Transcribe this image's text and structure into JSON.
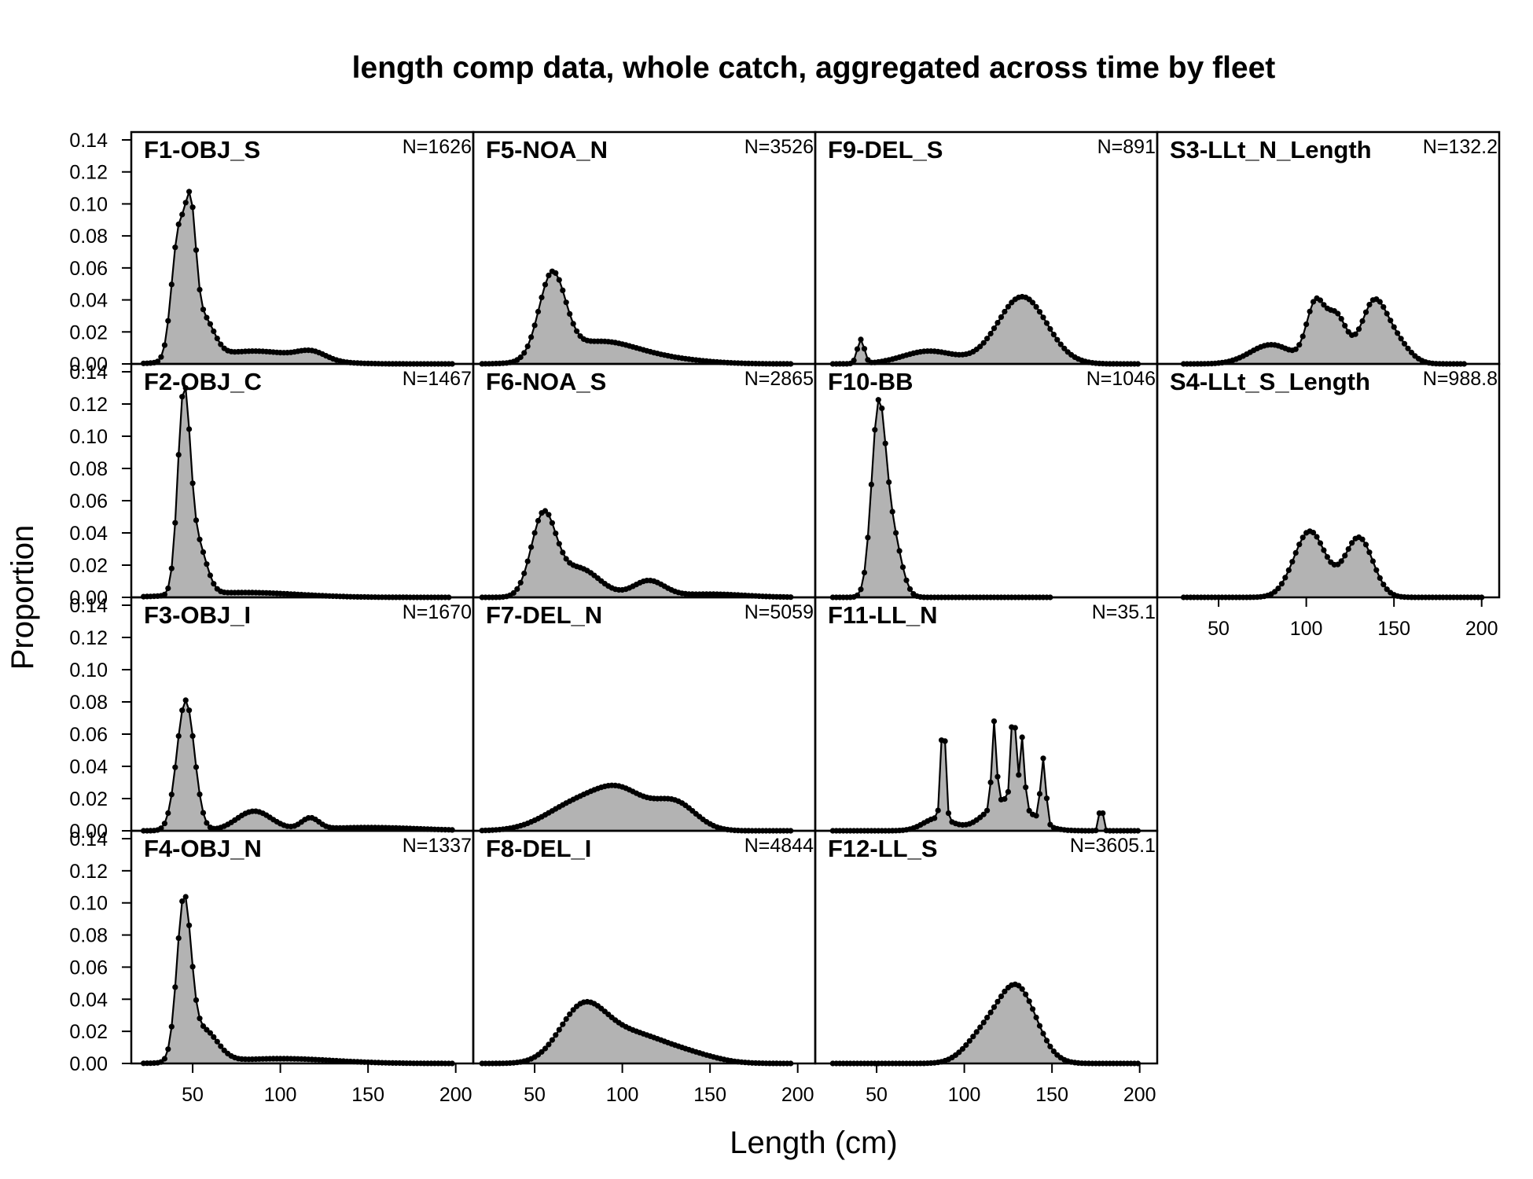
{
  "title": "length comp data, whole catch, aggregated across time by fleet",
  "xlabel": "Length (cm)",
  "ylabel": "Proportion",
  "colors": {
    "fill": "#b3b3b3",
    "line": "#000000",
    "frame": "#000000"
  },
  "y_ticks": [
    "0.00",
    "0.02",
    "0.04",
    "0.06",
    "0.08",
    "0.10",
    "0.12",
    "0.14"
  ],
  "x_ticks": [
    "50",
    "100",
    "150",
    "200"
  ],
  "chart_data": {
    "type": "area",
    "layout": "4 columns x 4 rows small multiples, shared axes",
    "xlim": [
      15,
      210
    ],
    "ylim": [
      0,
      0.14
    ],
    "x_ticks": [
      50,
      100,
      150,
      200
    ],
    "y_ticks": [
      0,
      0.02,
      0.04,
      0.06,
      0.08,
      0.1,
      0.12,
      0.14
    ],
    "grid": false,
    "panels": [
      {
        "label": "F1-OBJ_S",
        "n": "N=1626",
        "col": 0,
        "row": 0,
        "xrange": [
          22,
          198
        ],
        "peaks": [
          [
            42,
            0.079,
            4
          ],
          [
            49,
            0.073,
            3
          ],
          [
            56,
            0.025,
            6
          ],
          [
            85,
            0.008,
            25
          ],
          [
            118,
            0.005,
            8
          ]
        ]
      },
      {
        "label": "F2-OBJ_C",
        "n": "N=1467",
        "col": 0,
        "row": 1,
        "xrange": [
          22,
          196
        ],
        "peaks": [
          [
            45,
            0.122,
            3.5
          ],
          [
            53,
            0.03,
            5
          ],
          [
            80,
            0.003,
            30
          ]
        ]
      },
      {
        "label": "F3-OBJ_I",
        "n": "N=1670",
        "col": 0,
        "row": 2,
        "xrange": [
          22,
          198
        ],
        "peaks": [
          [
            46,
            0.081,
            5
          ],
          [
            85,
            0.012,
            10
          ],
          [
            117,
            0.007,
            5
          ],
          [
            150,
            0.002,
            30
          ]
        ]
      },
      {
        "label": "F4-OBJ_N",
        "n": "N=1337",
        "col": 0,
        "row": 3,
        "xrange": [
          22,
          198
        ],
        "peaks": [
          [
            45,
            0.097,
            4
          ],
          [
            56,
            0.02,
            8
          ],
          [
            100,
            0.003,
            30
          ]
        ]
      },
      {
        "label": "F5-NOA_N",
        "n": "N=3526",
        "col": 1,
        "row": 0,
        "xrange": [
          20,
          196
        ],
        "peaks": [
          [
            60,
            0.052,
            7.5
          ],
          [
            85,
            0.012,
            20
          ],
          [
            115,
            0.004,
            25
          ]
        ]
      },
      {
        "label": "F6-NOA_S",
        "n": "N=2865",
        "col": 1,
        "row": 1,
        "xrange": [
          20,
          196
        ],
        "peaks": [
          [
            55,
            0.049,
            7
          ],
          [
            75,
            0.018,
            12
          ],
          [
            115,
            0.01,
            9
          ],
          [
            150,
            0.002,
            20
          ]
        ]
      },
      {
        "label": "F7-DEL_N",
        "n": "N=5059",
        "col": 1,
        "row": 2,
        "xrange": [
          20,
          196
        ],
        "peaks": [
          [
            75,
            0.017,
            18
          ],
          [
            100,
            0.02,
            14
          ],
          [
            130,
            0.017,
            12
          ]
        ]
      },
      {
        "label": "F8-DEL_I",
        "n": "N=4844",
        "col": 1,
        "row": 3,
        "xrange": [
          20,
          196
        ],
        "peaks": [
          [
            77,
            0.031,
            13
          ],
          [
            105,
            0.018,
            20
          ],
          [
            140,
            0.004,
            15
          ]
        ]
      },
      {
        "label": "F9-DEL_S",
        "n": "N=891",
        "col": 2,
        "row": 0,
        "xrange": [
          25,
          200
        ],
        "peaks": [
          [
            41,
            0.015,
            2
          ],
          [
            80,
            0.008,
            15
          ],
          [
            133,
            0.042,
            14
          ]
        ]
      },
      {
        "label": "F10-BB",
        "n": "N=1046",
        "col": 2,
        "row": 1,
        "xrange": [
          25,
          150
        ],
        "peaks": [
          [
            51,
            0.112,
            4
          ],
          [
            59,
            0.038,
            5
          ]
        ]
      },
      {
        "label": "F11-LL_N",
        "n": "N=35.1",
        "col": 2,
        "row": 2,
        "xrange": [
          25,
          200
        ],
        "peaks": [
          [
            88,
            0.065,
            1.3
          ],
          [
            117,
            0.052,
            1.3
          ],
          [
            128,
            0.06,
            1.3
          ],
          [
            133,
            0.042,
            1.3
          ],
          [
            145,
            0.04,
            1.5
          ],
          [
            178,
            0.018,
            1
          ],
          [
            125,
            0.02,
            12
          ],
          [
            85,
            0.008,
            8
          ]
        ]
      },
      {
        "label": "F12-LL_S",
        "n": "N=3605.1",
        "col": 2,
        "row": 3,
        "xrange": [
          25,
          200
        ],
        "peaks": [
          [
            130,
            0.047,
            11
          ],
          [
            110,
            0.015,
            10
          ]
        ]
      },
      {
        "label": "S3-LLt_N_Length",
        "n": "N=132.2",
        "col": 3,
        "row": 0,
        "xrange": [
          30,
          190
        ],
        "peaks": [
          [
            105,
            0.035,
            5
          ],
          [
            117,
            0.03,
            6
          ],
          [
            138,
            0.035,
            7
          ],
          [
            80,
            0.012,
            12
          ],
          [
            150,
            0.015,
            8
          ]
        ]
      },
      {
        "label": "S4-LLt_S_Length",
        "n": "N=988.8",
        "col": 3,
        "row": 1,
        "xrange": [
          30,
          200
        ],
        "peaks": [
          [
            102,
            0.041,
            9
          ],
          [
            130,
            0.037,
            8
          ]
        ]
      }
    ]
  }
}
